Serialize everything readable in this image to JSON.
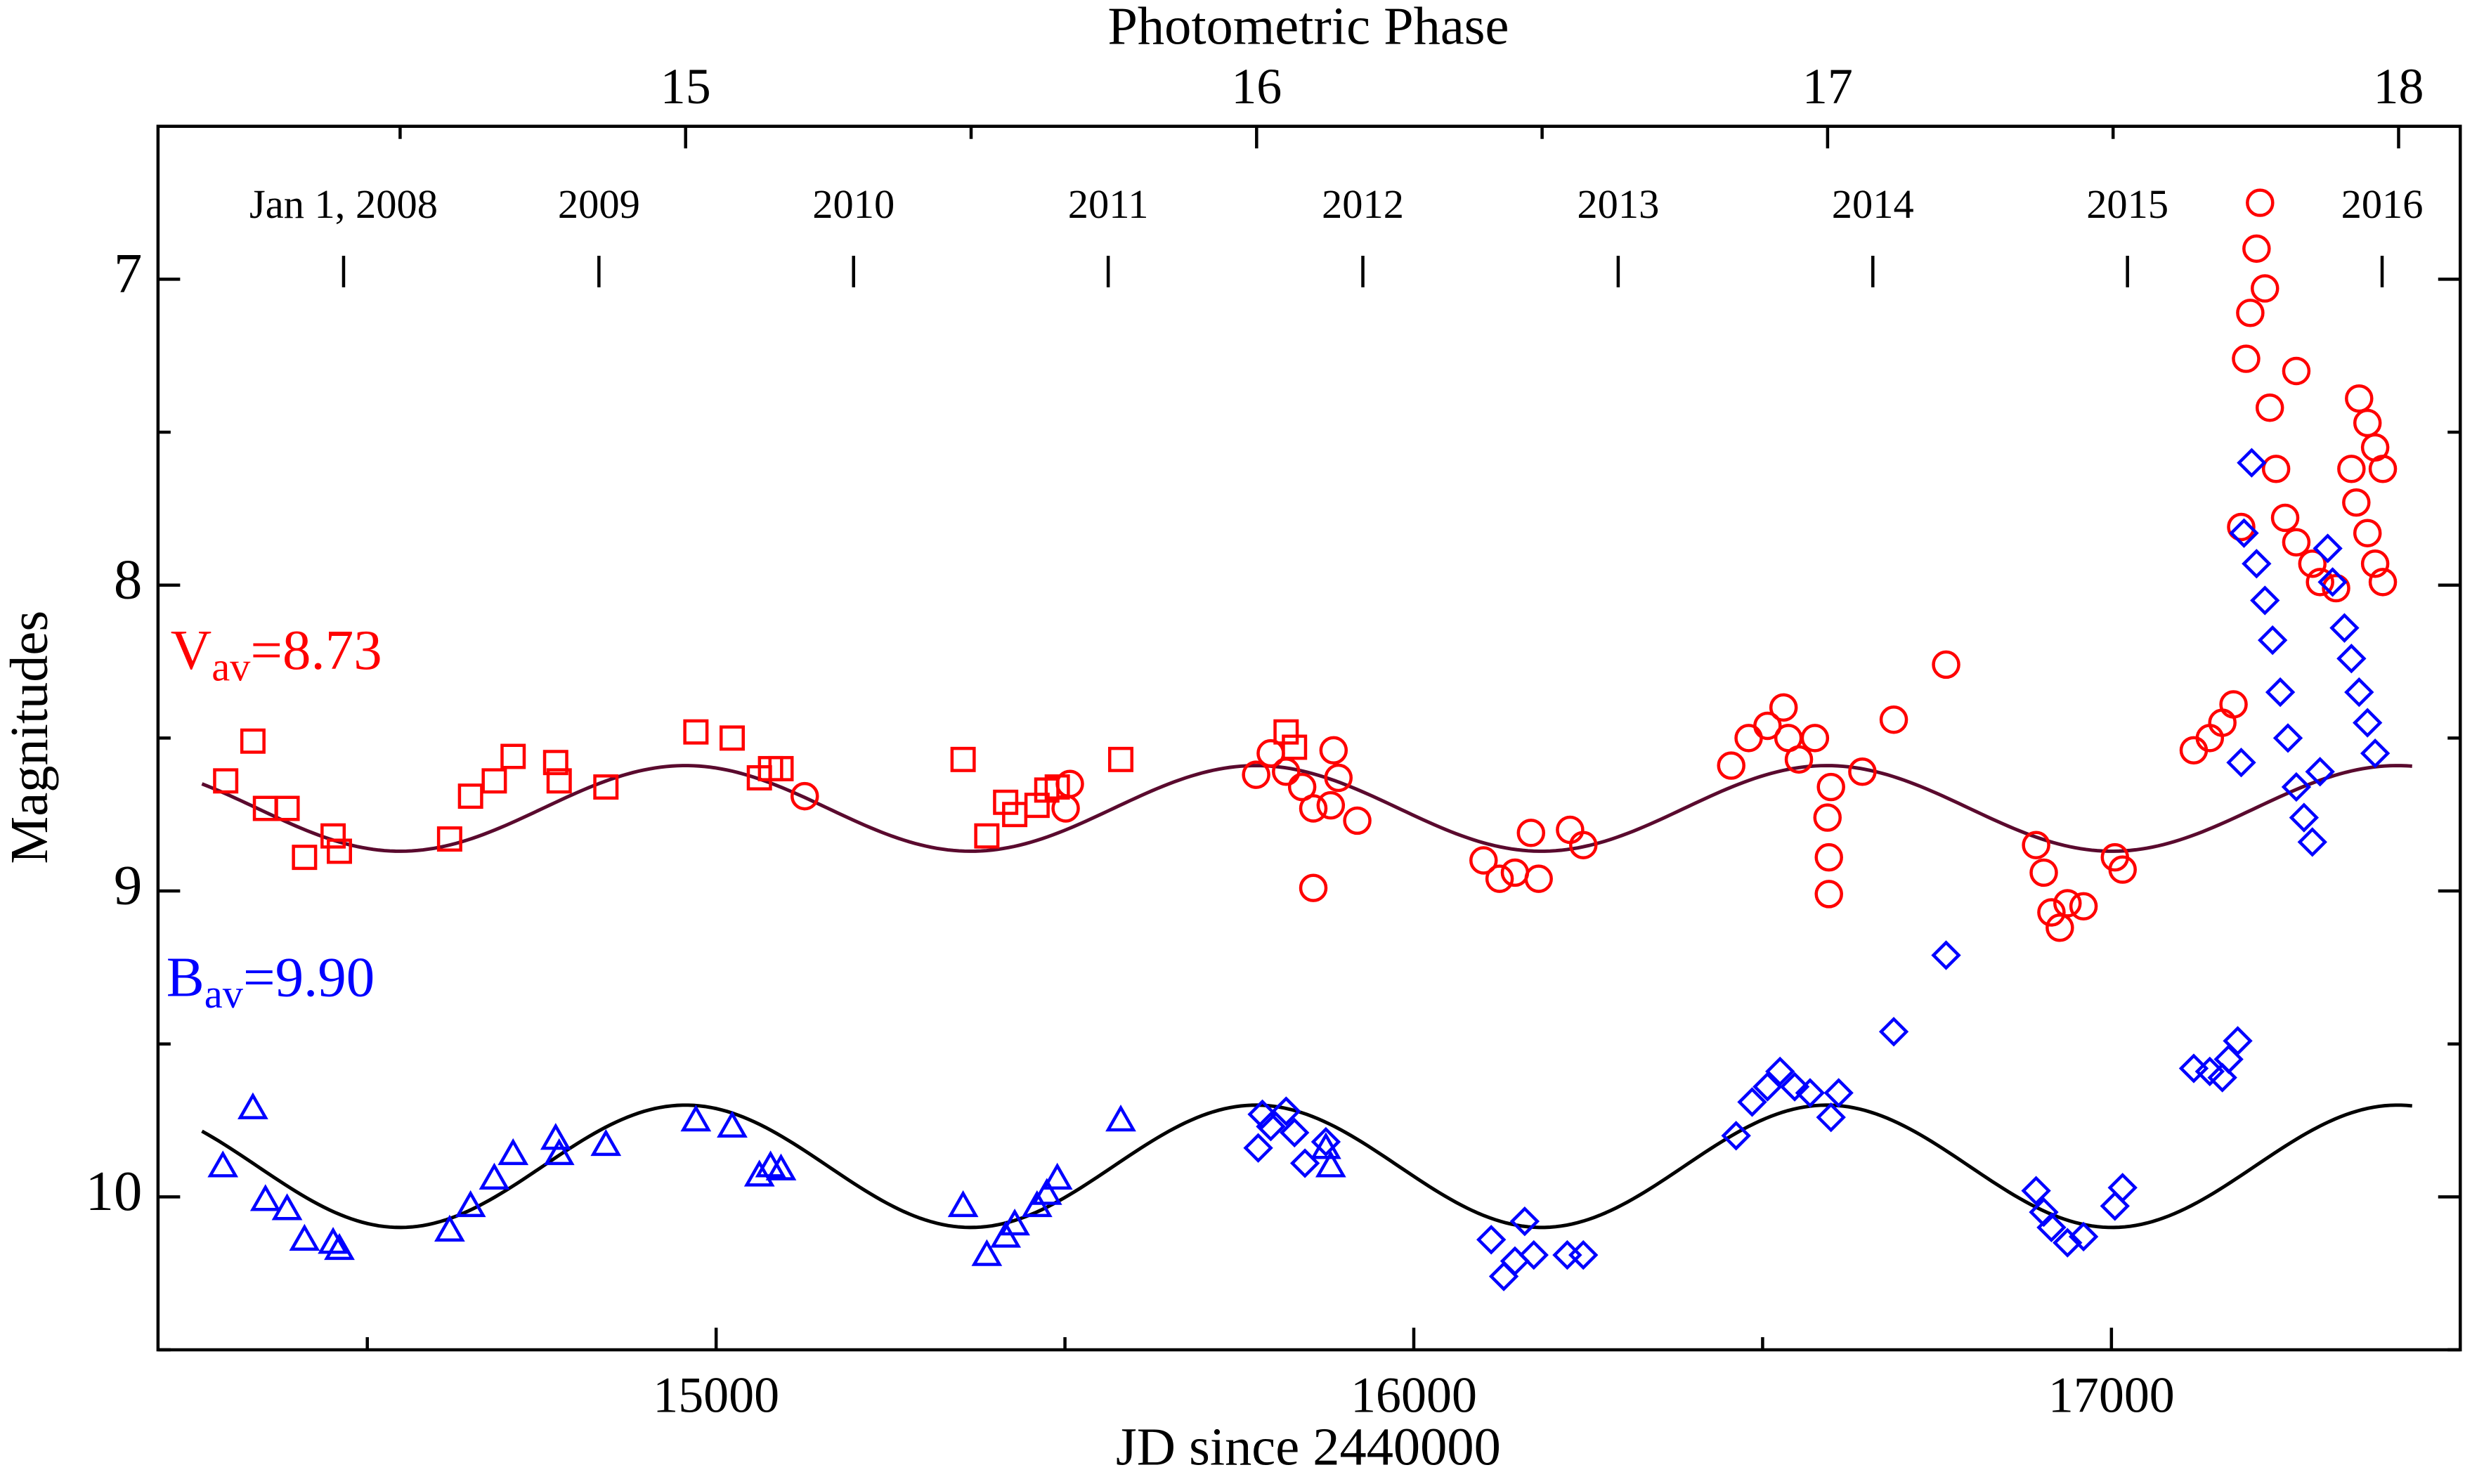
{
  "chart_data": {
    "type": "scatter",
    "xlabel": "JD since 2440000",
    "ylabel": "Magnitudes",
    "x2label": "Photometric Phase",
    "xlim": [
      14200,
      17500
    ],
    "xticks": [
      15000,
      16000,
      17000
    ],
    "xminorticks": [
      14500,
      15500,
      16500,
      17500
    ],
    "ylim": [
      6.5,
      10.5
    ],
    "y_inverted": true,
    "yticks": [
      7,
      8,
      9,
      10
    ],
    "yminorticks": [
      7.5,
      8.5,
      9.5,
      10.5
    ],
    "x2lim": [
      14.076,
      18.108
    ],
    "x2ticks": [
      15,
      16,
      17,
      18
    ],
    "x2minorticks": [
      14.5,
      15.5,
      16.5,
      17.5
    ],
    "date_ticks": [
      {
        "value": 14466,
        "label": "Jan 1, 2008"
      },
      {
        "value": 14832,
        "label": "2009"
      },
      {
        "value": 15197,
        "label": "2010"
      },
      {
        "value": 15562,
        "label": "2011"
      },
      {
        "value": 15927,
        "label": "2012"
      },
      {
        "value": 16293,
        "label": "2013"
      },
      {
        "value": 16658,
        "label": "2014"
      },
      {
        "value": 17023,
        "label": "2015"
      },
      {
        "value": 17388,
        "label": "2016"
      }
    ],
    "annotations": [
      {
        "text": "V",
        "sub": "av",
        "rest": "=8.73",
        "color": "#ff0000",
        "x": 14218,
        "y": 8.23
      },
      {
        "text": "B",
        "sub": "av",
        "rest": "=9.90",
        "color": "#0000ff",
        "x": 14212,
        "y": 9.3
      }
    ],
    "model": {
      "epoch": 14956,
      "period": 818,
      "jd_range": [
        14263,
        17431
      ],
      "curves": [
        {
          "mean": 8.73,
          "amplitude": 0.14,
          "color": "#5a0a2e"
        },
        {
          "mean": 9.9,
          "amplitude": 0.2,
          "color": "#000000"
        }
      ]
    },
    "series": [
      {
        "marker": "square",
        "color": "#ff0000",
        "x": [
          14297,
          14336,
          14354,
          14385,
          14410,
          14451,
          14460,
          14618,
          14648,
          14682,
          14709,
          14770,
          14775,
          14842,
          14971,
          15023,
          15062,
          15078,
          15093,
          15354,
          15388,
          15415,
          15428,
          15460,
          15474,
          15489,
          15580,
          15817,
          15829
        ],
        "values": [
          8.64,
          8.51,
          8.73,
          8.73,
          8.89,
          8.82,
          8.87,
          8.83,
          8.69,
          8.64,
          8.56,
          8.58,
          8.64,
          8.66,
          8.48,
          8.5,
          8.63,
          8.6,
          8.6,
          8.57,
          8.82,
          8.71,
          8.75,
          8.72,
          8.67,
          8.66,
          8.57,
          8.48,
          8.53
        ]
      },
      {
        "marker": "circle",
        "color": "#ff0000",
        "x": [
          15127,
          15507,
          15501,
          15774,
          15795,
          15817,
          15840,
          15856,
          15885,
          15892,
          15881,
          15919,
          15856,
          16100,
          16123,
          16145,
          16168,
          16179,
          16224,
          16243,
          16455,
          16480,
          16507,
          16530,
          16537,
          16552,
          16575,
          16593,
          16595,
          16595,
          16598,
          16643,
          16688,
          16763,
          16892,
          16903,
          16914,
          16926,
          16937,
          16960,
          17005,
          17016,
          17118,
          17141,
          17159,
          17175,
          17186,
          17193,
          17199,
          17208,
          17213,
          17220,
          17227,
          17236,
          17249,
          17265,
          17288,
          17299,
          17322,
          17344,
          17355,
          17367,
          17378,
          17389,
          17265,
          17351,
          17367,
          17378,
          17389
        ],
        "values": [
          8.69,
          8.65,
          8.73,
          8.62,
          8.55,
          8.61,
          8.66,
          8.73,
          8.54,
          8.63,
          8.72,
          8.77,
          8.99,
          8.9,
          8.96,
          8.94,
          8.81,
          8.96,
          8.8,
          8.85,
          8.59,
          8.5,
          8.46,
          8.4,
          8.5,
          8.57,
          8.5,
          8.76,
          8.89,
          9.01,
          8.66,
          8.61,
          8.44,
          8.26,
          8.85,
          8.94,
          9.07,
          9.12,
          9.04,
          9.05,
          8.89,
          8.93,
          8.54,
          8.5,
          8.45,
          8.39,
          7.81,
          7.26,
          7.11,
          6.9,
          6.75,
          7.03,
          7.42,
          7.62,
          7.78,
          7.86,
          7.93,
          7.99,
          8.01,
          7.62,
          7.39,
          7.47,
          7.55,
          7.62,
          7.3,
          7.73,
          7.83,
          7.93,
          7.99
        ]
      },
      {
        "marker": "triangle",
        "color": "#0000ff",
        "x": [
          14293,
          14336,
          14354,
          14385,
          14410,
          14451,
          14460,
          14618,
          14648,
          14682,
          14709,
          14770,
          14775,
          14842,
          14971,
          15023,
          15062,
          15078,
          15093,
          15354,
          15388,
          15415,
          15428,
          15460,
          15474,
          15489,
          15580,
          15874,
          15881
        ],
        "values": [
          9.9,
          9.71,
          10.01,
          10.04,
          10.14,
          10.15,
          10.17,
          10.11,
          10.03,
          9.94,
          9.86,
          9.81,
          9.86,
          9.83,
          9.75,
          9.77,
          9.93,
          9.9,
          9.91,
          10.03,
          10.19,
          10.13,
          10.09,
          10.03,
          9.99,
          9.94,
          9.75,
          9.84,
          9.9
        ]
      },
      {
        "marker": "diamond",
        "color": "#0000ff",
        "x": [
          15777,
          15795,
          15817,
          15829,
          15844,
          15783,
          15874,
          16111,
          16129,
          16145,
          16159,
          16172,
          16220,
          16243,
          16462,
          16485,
          16507,
          16525,
          16546,
          16568,
          16598,
          16609,
          16688,
          16763,
          16892,
          16903,
          16914,
          16937,
          16960,
          17005,
          17016,
          17118,
          17141,
          17159,
          17168,
          17181,
          17186,
          17190,
          17201,
          17208,
          17220,
          17231,
          17242,
          17253,
          17265,
          17276,
          17288,
          17299,
          17310,
          17317,
          17334,
          17344,
          17355,
          17367,
          17378
        ],
        "values": [
          9.84,
          9.77,
          9.72,
          9.79,
          9.89,
          9.73,
          9.82,
          10.14,
          10.26,
          10.21,
          10.08,
          10.19,
          10.19,
          10.19,
          9.8,
          9.69,
          9.64,
          9.59,
          9.64,
          9.66,
          9.74,
          9.66,
          9.46,
          9.21,
          9.98,
          10.05,
          10.1,
          10.15,
          10.13,
          10.03,
          9.97,
          9.58,
          9.59,
          9.61,
          9.55,
          9.49,
          8.58,
          7.83,
          7.6,
          7.93,
          8.05,
          8.18,
          8.35,
          8.5,
          8.66,
          8.76,
          8.84,
          8.61,
          7.88,
          7.99,
          8.14,
          8.24,
          8.35,
          8.45,
          8.55
        ]
      }
    ]
  }
}
